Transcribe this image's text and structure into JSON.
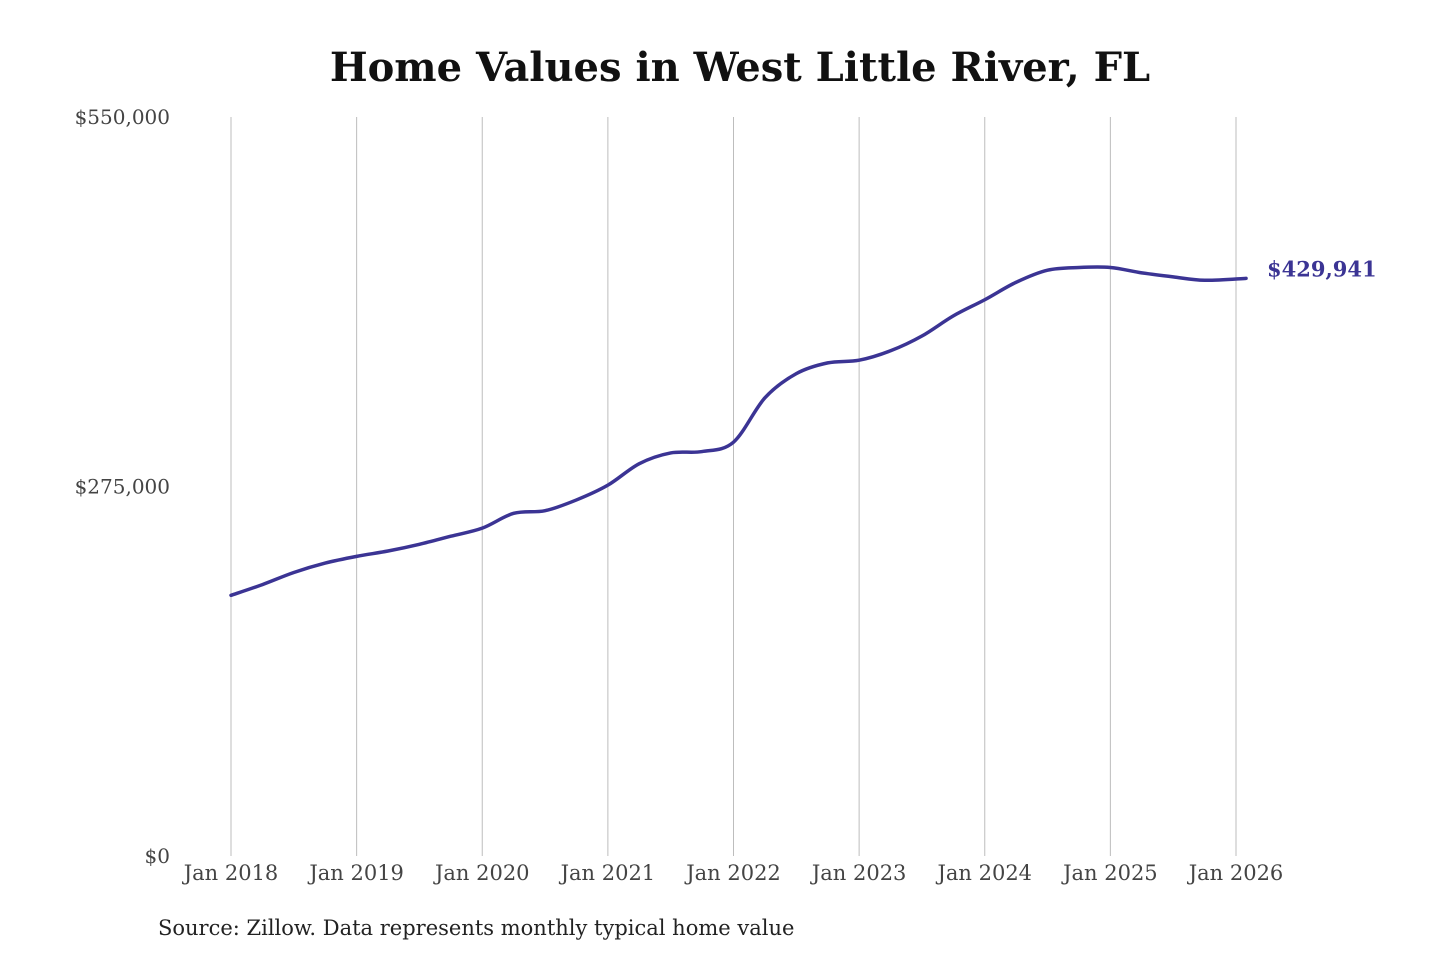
{
  "chart_data": {
    "type": "line",
    "title": "Home Values in West Little River, FL",
    "xlabel": "",
    "ylabel": "",
    "ylim": [
      0,
      550000
    ],
    "xlim": [
      2018.0,
      2026.0
    ],
    "y_ticks": [
      {
        "value": 0,
        "label": "$0"
      },
      {
        "value": 275000,
        "label": "$275,000"
      },
      {
        "value": 550000,
        "label": "$550,000"
      }
    ],
    "x_ticks": [
      {
        "value": 2018,
        "label": "Jan 2018"
      },
      {
        "value": 2019,
        "label": "Jan 2019"
      },
      {
        "value": 2020,
        "label": "Jan 2020"
      },
      {
        "value": 2021,
        "label": "Jan 2021"
      },
      {
        "value": 2022,
        "label": "Jan 2022"
      },
      {
        "value": 2023,
        "label": "Jan 2023"
      },
      {
        "value": 2024,
        "label": "Jan 2024"
      },
      {
        "value": 2025,
        "label": "Jan 2025"
      },
      {
        "value": 2026,
        "label": "Jan 2026"
      }
    ],
    "grid": "vertical",
    "series": [
      {
        "name": "Typical home value",
        "color": "#3b3494",
        "x": [
          2018.0,
          2018.25,
          2018.5,
          2018.75,
          2019.0,
          2019.25,
          2019.5,
          2019.75,
          2020.0,
          2020.25,
          2020.5,
          2020.75,
          2021.0,
          2021.25,
          2021.5,
          2021.75,
          2022.0,
          2022.25,
          2022.5,
          2022.75,
          2023.0,
          2023.25,
          2023.5,
          2023.75,
          2024.0,
          2024.25,
          2024.5,
          2024.75,
          2025.0,
          2025.25,
          2025.5,
          2025.75,
          2026.08
        ],
        "values": [
          194000,
          202000,
          211000,
          218000,
          223000,
          227000,
          232000,
          238000,
          244000,
          255000,
          257000,
          265000,
          276000,
          292000,
          300000,
          301000,
          308000,
          341000,
          359000,
          367000,
          369000,
          376000,
          387000,
          402000,
          414000,
          427000,
          436000,
          438000,
          438000,
          434000,
          431000,
          428500,
          429941
        ]
      }
    ],
    "end_label": "$429,941"
  },
  "source": "Source: Zillow. Data represents monthly typical home value"
}
